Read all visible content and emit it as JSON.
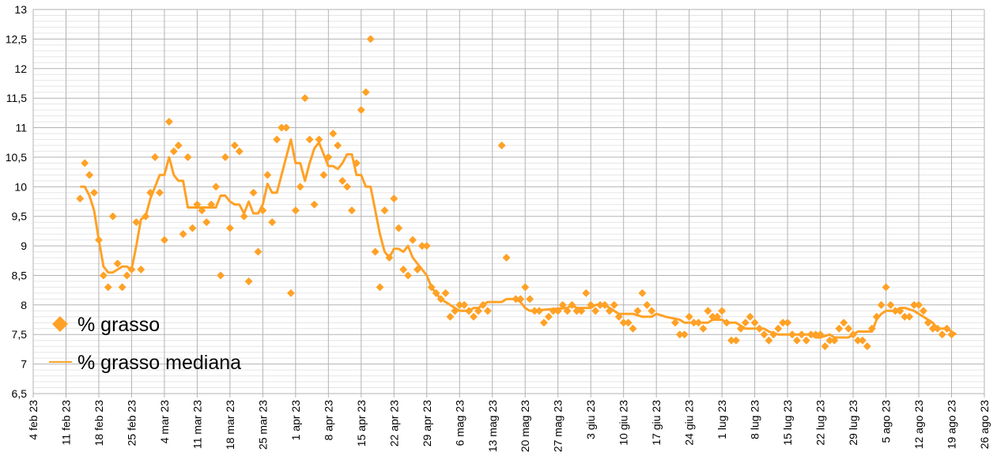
{
  "chart_data": {
    "type": "scatter",
    "title": "",
    "xlabel": "",
    "ylabel": "",
    "x_start_date": "4 feb 23",
    "x_unit": "days since 4 feb 23",
    "xlim": [
      0,
      203
    ],
    "ylim": [
      6.5,
      13
    ],
    "y_step": 0.5,
    "grid": true,
    "legend_position": "bottom-left",
    "accent_color": "#ffa126",
    "x_tick_labels": [
      "4 feb 23",
      "11 feb 23",
      "18 feb 23",
      "25 feb 23",
      "4 mar 23",
      "11 mar 23",
      "18 mar 23",
      "25 mar 23",
      "1 apr 23",
      "8 apr 23",
      "15 apr 23",
      "22 apr 23",
      "29 apr 23",
      "6 mag 23",
      "13 mag 23",
      "20 mag 23",
      "27 mag 23",
      "3 giu 23",
      "10 giu 23",
      "17 giu 23",
      "24 giu 23",
      "1 lug 23",
      "8 lug 23",
      "15 lug 23",
      "22 lug 23",
      "29 lug 23",
      "5 ago 23",
      "12 ago 23",
      "19 ago 23",
      "26 ago 23"
    ],
    "y_tick_labels": [
      "6,5",
      "7",
      "7,5",
      "8",
      "8,5",
      "9",
      "9,5",
      "10",
      "10,5",
      "11",
      "11,5",
      "12",
      "12,5",
      "13"
    ],
    "series": [
      {
        "name": "% grasso",
        "type": "scatter",
        "points": [
          [
            10,
            9.8
          ],
          [
            11,
            10.4
          ],
          [
            12,
            10.2
          ],
          [
            13,
            9.9
          ],
          [
            14,
            9.1
          ],
          [
            15,
            8.5
          ],
          [
            16,
            8.3
          ],
          [
            17,
            9.5
          ],
          [
            18,
            8.7
          ],
          [
            19,
            8.3
          ],
          [
            20,
            8.5
          ],
          [
            21,
            8.6
          ],
          [
            22,
            9.4
          ],
          [
            23,
            8.6
          ],
          [
            24,
            9.5
          ],
          [
            25,
            9.9
          ],
          [
            26,
            10.5
          ],
          [
            27,
            9.9
          ],
          [
            28,
            9.1
          ],
          [
            29,
            11.1
          ],
          [
            30,
            10.6
          ],
          [
            31,
            10.7
          ],
          [
            32,
            9.2
          ],
          [
            33,
            10.5
          ],
          [
            34,
            9.3
          ],
          [
            35,
            9.7
          ],
          [
            36,
            9.6
          ],
          [
            37,
            9.4
          ],
          [
            38,
            9.7
          ],
          [
            39,
            10.0
          ],
          [
            40,
            8.5
          ],
          [
            41,
            10.5
          ],
          [
            42,
            9.3
          ],
          [
            43,
            10.7
          ],
          [
            44,
            10.6
          ],
          [
            45,
            9.5
          ],
          [
            46,
            8.4
          ],
          [
            47,
            9.9
          ],
          [
            48,
            8.9
          ],
          [
            49,
            9.6
          ],
          [
            50,
            10.2
          ],
          [
            51,
            9.4
          ],
          [
            52,
            10.8
          ],
          [
            53,
            11.0
          ],
          [
            54,
            11.0
          ],
          [
            55,
            8.2
          ],
          [
            56,
            9.6
          ],
          [
            57,
            10.0
          ],
          [
            58,
            11.5
          ],
          [
            59,
            10.8
          ],
          [
            60,
            9.7
          ],
          [
            61,
            10.8
          ],
          [
            62,
            10.2
          ],
          [
            63,
            10.5
          ],
          [
            64,
            10.9
          ],
          [
            65,
            10.7
          ],
          [
            66,
            10.1
          ],
          [
            67,
            10.0
          ],
          [
            68,
            9.6
          ],
          [
            69,
            10.4
          ],
          [
            70,
            11.3
          ],
          [
            71,
            11.6
          ],
          [
            72,
            12.5
          ],
          [
            73,
            8.9
          ],
          [
            74,
            8.3
          ],
          [
            75,
            9.6
          ],
          [
            76,
            8.8
          ],
          [
            77,
            9.8
          ],
          [
            78,
            9.3
          ],
          [
            79,
            8.6
          ],
          [
            80,
            8.5
          ],
          [
            81,
            9.1
          ],
          [
            82,
            8.6
          ],
          [
            83,
            9.0
          ],
          [
            84,
            9.0
          ],
          [
            85,
            8.3
          ],
          [
            86,
            8.2
          ],
          [
            87,
            8.1
          ],
          [
            88,
            8.2
          ],
          [
            89,
            7.8
          ],
          [
            90,
            7.9
          ],
          [
            91,
            8.0
          ],
          [
            92,
            8.0
          ],
          [
            93,
            7.9
          ],
          [
            94,
            7.8
          ],
          [
            95,
            7.9
          ],
          [
            96,
            8.0
          ],
          [
            97,
            7.9
          ],
          [
            100,
            10.7
          ],
          [
            101,
            8.8
          ],
          [
            103,
            8.1
          ],
          [
            104,
            8.1
          ],
          [
            105,
            8.3
          ],
          [
            106,
            8.1
          ],
          [
            107,
            7.9
          ],
          [
            108,
            7.9
          ],
          [
            109,
            7.7
          ],
          [
            110,
            7.8
          ],
          [
            111,
            7.9
          ],
          [
            112,
            7.9
          ],
          [
            113,
            8.0
          ],
          [
            114,
            7.9
          ],
          [
            115,
            8.0
          ],
          [
            116,
            7.9
          ],
          [
            117,
            7.9
          ],
          [
            118,
            8.2
          ],
          [
            119,
            8.0
          ],
          [
            120,
            7.9
          ],
          [
            121,
            8.0
          ],
          [
            122,
            8.0
          ],
          [
            123,
            7.9
          ],
          [
            124,
            8.0
          ],
          [
            125,
            7.8
          ],
          [
            126,
            7.7
          ],
          [
            127,
            7.7
          ],
          [
            128,
            7.6
          ],
          [
            129,
            7.9
          ],
          [
            130,
            8.2
          ],
          [
            131,
            8.0
          ],
          [
            132,
            7.9
          ],
          [
            137,
            7.7
          ],
          [
            138,
            7.5
          ],
          [
            139,
            7.5
          ],
          [
            140,
            7.8
          ],
          [
            141,
            7.7
          ],
          [
            142,
            7.7
          ],
          [
            143,
            7.6
          ],
          [
            144,
            7.9
          ],
          [
            145,
            7.8
          ],
          [
            146,
            7.8
          ],
          [
            147,
            7.9
          ],
          [
            148,
            7.7
          ],
          [
            149,
            7.4
          ],
          [
            150,
            7.4
          ],
          [
            151,
            7.6
          ],
          [
            152,
            7.7
          ],
          [
            153,
            7.8
          ],
          [
            154,
            7.7
          ],
          [
            155,
            7.6
          ],
          [
            156,
            7.5
          ],
          [
            157,
            7.4
          ],
          [
            158,
            7.5
          ],
          [
            159,
            7.6
          ],
          [
            160,
            7.7
          ],
          [
            161,
            7.7
          ],
          [
            162,
            7.5
          ],
          [
            163,
            7.4
          ],
          [
            164,
            7.5
          ],
          [
            165,
            7.4
          ],
          [
            166,
            7.5
          ],
          [
            167,
            7.5
          ],
          [
            168,
            7.5
          ],
          [
            169,
            7.3
          ],
          [
            170,
            7.4
          ],
          [
            171,
            7.4
          ],
          [
            172,
            7.6
          ],
          [
            173,
            7.7
          ],
          [
            174,
            7.6
          ],
          [
            175,
            7.5
          ],
          [
            176,
            7.4
          ],
          [
            177,
            7.4
          ],
          [
            178,
            7.3
          ],
          [
            179,
            7.6
          ],
          [
            180,
            7.8
          ],
          [
            181,
            8.0
          ],
          [
            182,
            8.3
          ],
          [
            183,
            8.0
          ],
          [
            184,
            7.9
          ],
          [
            185,
            7.9
          ],
          [
            186,
            7.8
          ],
          [
            187,
            7.8
          ],
          [
            188,
            8.0
          ],
          [
            189,
            8.0
          ],
          [
            190,
            7.9
          ],
          [
            191,
            7.7
          ],
          [
            192,
            7.6
          ],
          [
            193,
            7.6
          ],
          [
            194,
            7.5
          ],
          [
            195,
            7.6
          ],
          [
            196,
            7.5
          ]
        ]
      },
      {
        "name": "% grasso mediana",
        "type": "line",
        "points": [
          [
            10,
            10.0
          ],
          [
            11,
            10.0
          ],
          [
            12,
            9.85
          ],
          [
            13,
            9.6
          ],
          [
            14,
            9.1
          ],
          [
            15,
            8.65
          ],
          [
            16,
            8.55
          ],
          [
            17,
            8.55
          ],
          [
            18,
            8.6
          ],
          [
            19,
            8.65
          ],
          [
            20,
            8.65
          ],
          [
            21,
            8.6
          ],
          [
            22,
            9.0
          ],
          [
            23,
            9.45
          ],
          [
            24,
            9.5
          ],
          [
            25,
            9.8
          ],
          [
            26,
            10.0
          ],
          [
            27,
            10.2
          ],
          [
            28,
            10.2
          ],
          [
            29,
            10.5
          ],
          [
            30,
            10.2
          ],
          [
            31,
            10.1
          ],
          [
            32,
            10.1
          ],
          [
            33,
            9.65
          ],
          [
            39,
            9.65
          ],
          [
            40,
            9.85
          ],
          [
            41,
            9.85
          ],
          [
            42,
            9.75
          ],
          [
            43,
            9.7
          ],
          [
            44,
            9.7
          ],
          [
            45,
            9.55
          ],
          [
            46,
            9.75
          ],
          [
            47,
            9.55
          ],
          [
            48,
            9.55
          ],
          [
            49,
            9.7
          ],
          [
            50,
            10.05
          ],
          [
            51,
            9.9
          ],
          [
            52,
            9.9
          ],
          [
            53,
            10.2
          ],
          [
            54,
            10.5
          ],
          [
            55,
            10.8
          ],
          [
            56,
            10.4
          ],
          [
            57,
            10.4
          ],
          [
            58,
            10.1
          ],
          [
            59,
            10.4
          ],
          [
            60,
            10.65
          ],
          [
            61,
            10.75
          ],
          [
            62,
            10.55
          ],
          [
            63,
            10.35
          ],
          [
            64,
            10.35
          ],
          [
            65,
            10.3
          ],
          [
            66,
            10.4
          ],
          [
            67,
            10.55
          ],
          [
            68,
            10.55
          ],
          [
            69,
            10.2
          ],
          [
            70,
            10.2
          ],
          [
            71,
            10.0
          ],
          [
            72,
            10.0
          ],
          [
            73,
            9.6
          ],
          [
            74,
            9.2
          ],
          [
            75,
            8.9
          ],
          [
            76,
            8.8
          ],
          [
            77,
            8.95
          ],
          [
            78,
            8.95
          ],
          [
            79,
            8.9
          ],
          [
            80,
            9.0
          ],
          [
            81,
            8.8
          ],
          [
            82,
            8.7
          ],
          [
            83,
            8.6
          ],
          [
            84,
            8.5
          ],
          [
            85,
            8.3
          ],
          [
            86,
            8.2
          ],
          [
            87,
            8.1
          ],
          [
            88,
            8.05
          ],
          [
            89,
            8.0
          ],
          [
            90,
            7.95
          ],
          [
            91,
            7.9
          ],
          [
            93,
            7.9
          ],
          [
            94,
            7.95
          ],
          [
            95,
            7.95
          ],
          [
            96,
            8.0
          ],
          [
            97,
            8.05
          ],
          [
            100,
            8.05
          ],
          [
            101,
            8.1
          ],
          [
            103,
            8.1
          ],
          [
            104,
            8.05
          ],
          [
            105,
            7.95
          ],
          [
            106,
            7.9
          ],
          [
            114,
            7.95
          ],
          [
            115,
            8.0
          ],
          [
            116,
            7.95
          ],
          [
            119,
            7.95
          ],
          [
            120,
            8.0
          ],
          [
            122,
            8.0
          ],
          [
            124,
            7.9
          ],
          [
            125,
            7.85
          ],
          [
            128,
            7.85
          ],
          [
            130,
            7.8
          ],
          [
            132,
            7.8
          ],
          [
            133,
            7.85
          ],
          [
            135,
            7.8
          ],
          [
            138,
            7.75
          ],
          [
            139,
            7.7
          ],
          [
            144,
            7.7
          ],
          [
            145,
            7.75
          ],
          [
            147,
            7.75
          ],
          [
            148,
            7.7
          ],
          [
            150,
            7.7
          ],
          [
            151,
            7.65
          ],
          [
            152,
            7.6
          ],
          [
            156,
            7.6
          ],
          [
            157,
            7.55
          ],
          [
            159,
            7.5
          ],
          [
            166,
            7.5
          ],
          [
            167,
            7.45
          ],
          [
            168,
            7.45
          ],
          [
            170,
            7.5
          ],
          [
            171,
            7.45
          ],
          [
            174,
            7.45
          ],
          [
            175,
            7.5
          ],
          [
            176,
            7.55
          ],
          [
            179,
            7.55
          ],
          [
            180,
            7.75
          ],
          [
            181,
            7.85
          ],
          [
            182,
            7.9
          ],
          [
            184,
            7.9
          ],
          [
            185,
            7.95
          ],
          [
            186,
            7.95
          ],
          [
            188,
            7.9
          ],
          [
            190,
            7.8
          ],
          [
            192,
            7.7
          ],
          [
            193,
            7.6
          ],
          [
            195,
            7.6
          ],
          [
            196,
            7.55
          ],
          [
            197,
            7.5
          ]
        ]
      }
    ]
  }
}
